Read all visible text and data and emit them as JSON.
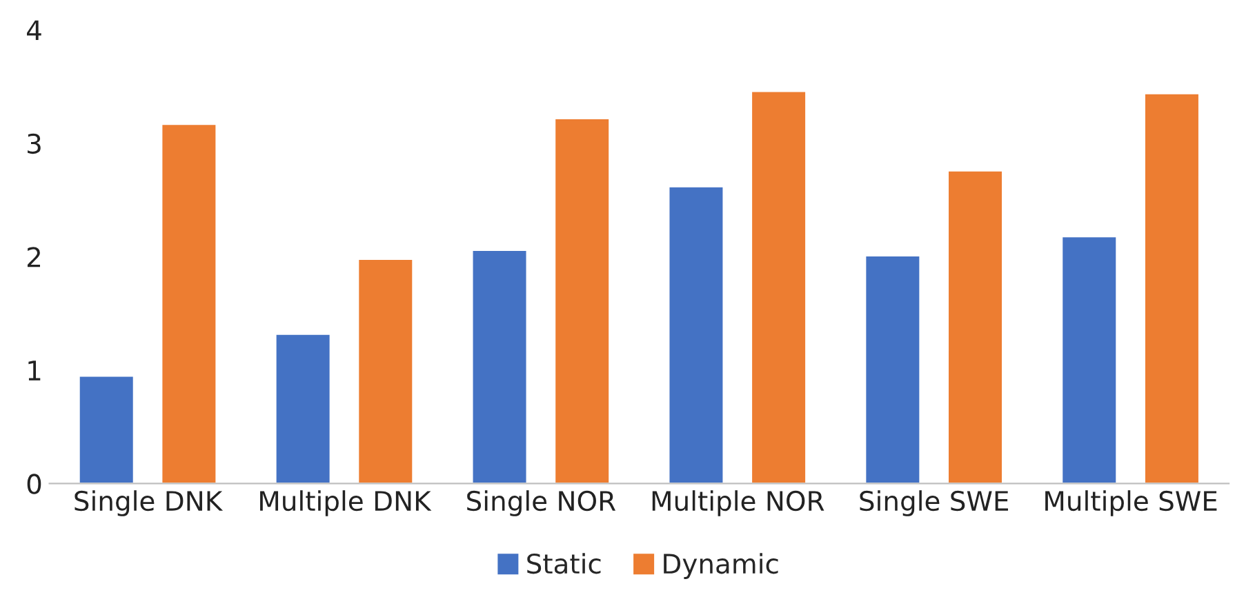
{
  "chart_data": {
    "type": "bar",
    "categories": [
      "Single DNK",
      "Multiple DNK",
      "Single NOR",
      "Multiple NOR",
      "Single SWE",
      "Multiple SWE"
    ],
    "series": [
      {
        "name": "Static",
        "color": "#4472c4",
        "values": [
          0.95,
          1.32,
          2.06,
          2.62,
          2.01,
          2.18
        ]
      },
      {
        "name": "Dynamic",
        "color": "#ed7d31",
        "values": [
          3.17,
          1.98,
          3.22,
          3.46,
          2.76,
          3.44
        ]
      }
    ],
    "ylim": [
      0,
      4
    ],
    "yticks": [
      0,
      1,
      2,
      3,
      4
    ],
    "grid": false,
    "legend": "bottom"
  }
}
